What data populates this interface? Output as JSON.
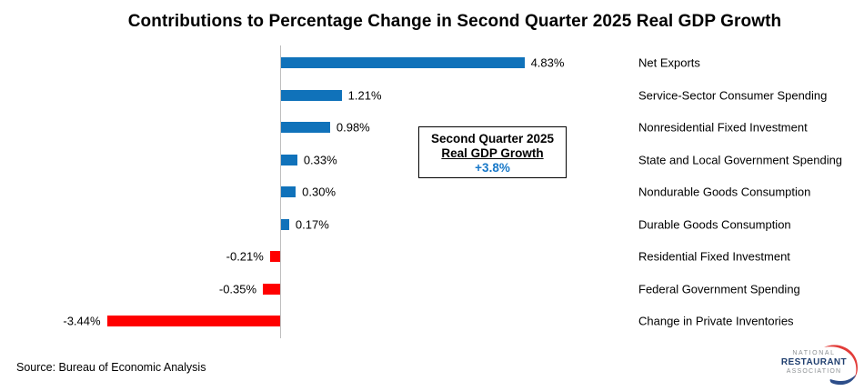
{
  "title": "Contributions to Percentage Change in Second Quarter 2025 Real GDP Growth",
  "chart_data": {
    "type": "bar",
    "orientation": "horizontal",
    "categories": [
      "Net Exports",
      "Service-Sector Consumer Spending",
      "Nonresidential Fixed Investment",
      "State and Local Government Spending",
      "Nondurable Goods Consumption",
      "Durable Goods Consumption",
      "Residential Fixed Investment",
      "Federal Government Spending",
      "Change in Private Inventories"
    ],
    "values": [
      4.83,
      1.21,
      0.98,
      0.33,
      0.3,
      0.17,
      -0.21,
      -0.35,
      -3.44
    ],
    "value_labels": [
      "4.83%",
      "1.21%",
      "0.98%",
      "0.33%",
      "0.30%",
      "0.17%",
      "-0.21%",
      "-0.35%",
      "-3.44%"
    ],
    "xlim": [
      -3.6,
      5.5
    ],
    "grid": false,
    "legend": "none",
    "positive_color": "#1072ba",
    "negative_color": "#ff0000",
    "axis_color": "#bfbfbf"
  },
  "annotation_box": {
    "line1": "Second Quarter 2025",
    "line2": "Real GDP Growth",
    "value": "+3.8%",
    "value_color": "#1878c8"
  },
  "source": "Source: Bureau of Economic Analysis",
  "logo": {
    "line1": "NATIONAL",
    "line2": "RESTAURANT",
    "line3": "ASSOCIATION",
    "navy": "#1f3e6e",
    "gray": "#8d9194",
    "red": "#e23c39",
    "swoosh_blue": "#2d4e8a"
  }
}
